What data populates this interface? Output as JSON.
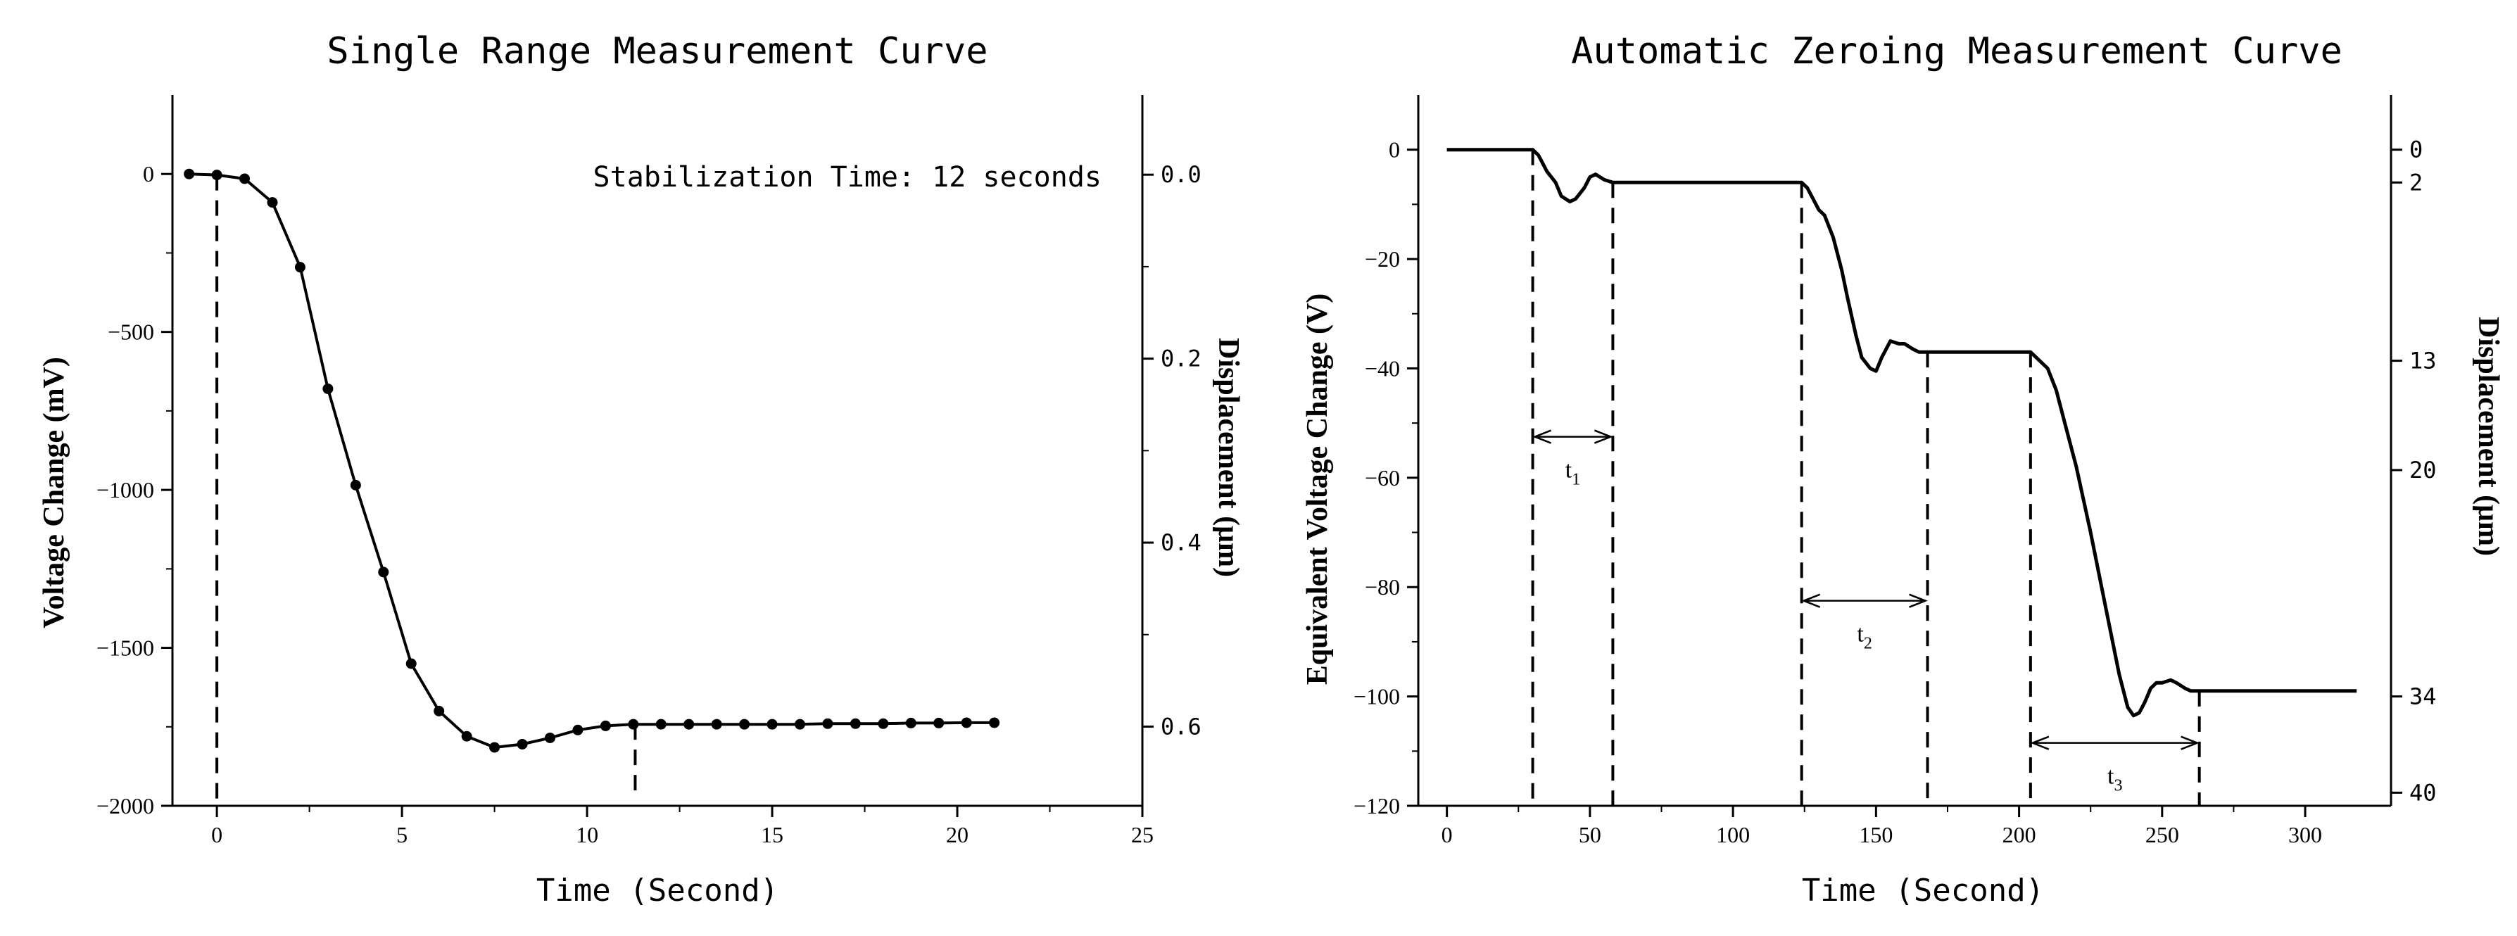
{
  "chart_data": [
    {
      "type": "line",
      "title": "Single Range Measurement Curve",
      "xlabel": "Time  (Second)",
      "ylabel": "Voltage Change (mV)",
      "y2label": "Displacement (μm)",
      "xlim": [
        -1.2,
        25
      ],
      "ylim": [
        -2000,
        250
      ],
      "y2lim": [
        -0.0866,
        0.6861
      ],
      "xticks": [
        0,
        5,
        10,
        15,
        20,
        25
      ],
      "yticks": [
        0,
        -500,
        -1000,
        -1500,
        -2000
      ],
      "y2ticks": [
        "0.0",
        "0.2",
        "0.4",
        "0.6"
      ],
      "grid": false,
      "markers": true,
      "annotation": "Stabilization Time: 12 seconds",
      "dashed_markers_x": [
        0,
        11.3
      ],
      "series": [
        {
          "x": [
            -0.75,
            0,
            0.75,
            1.5,
            2.25,
            3.0,
            3.75,
            4.5,
            5.25,
            6.0,
            6.75,
            7.5,
            8.25,
            9.0,
            9.75,
            10.5,
            11.25,
            12.0,
            12.75,
            13.5,
            14.25,
            15.0,
            15.75,
            16.5,
            17.25,
            18.0,
            18.75,
            19.5,
            20.25,
            21.0
          ],
          "y": [
            0,
            -3,
            -15,
            -90,
            -295,
            -680,
            -985,
            -1260,
            -1550,
            -1700,
            -1780,
            -1815,
            -1805,
            -1785,
            -1760,
            -1747,
            -1742,
            -1742,
            -1742,
            -1742,
            -1742,
            -1742,
            -1742,
            -1740,
            -1740,
            -1740,
            -1738,
            -1738,
            -1737,
            -1737
          ]
        }
      ]
    },
    {
      "type": "line",
      "title": "Automatic Zeroing Measurement Curve",
      "xlabel": "Time  (Second)",
      "ylabel": "Equivalent Voltage Change (V)",
      "y2label": "Displacement (μm)",
      "xlim": [
        -10,
        330
      ],
      "ylim": [
        -120,
        10
      ],
      "xticks": [
        0,
        50,
        100,
        150,
        200,
        250,
        300
      ],
      "yticks": [
        0,
        -20,
        -40,
        -60,
        -80,
        -100,
        -120
      ],
      "y2ticks": [
        {
          "label": "0",
          "y": 0
        },
        {
          "label": "2",
          "y": -6
        },
        {
          "label": "13",
          "y": -38.6
        },
        {
          "label": "20",
          "y": -58.6
        },
        {
          "label": "34",
          "y": -100
        },
        {
          "label": "40",
          "y": -117.6
        }
      ],
      "grid": false,
      "markers": false,
      "dashed_markers_x": [
        30,
        58,
        124,
        168,
        204,
        263
      ],
      "intervals": [
        {
          "label": "t",
          "sub": "1",
          "x0": 30,
          "x1": 58,
          "y": -52.5
        },
        {
          "label": "t",
          "sub": "2",
          "x0": 124,
          "x1": 168,
          "y": -82.5
        },
        {
          "label": "t",
          "sub": "3",
          "x0": 204,
          "x1": 263,
          "y": -108.5
        }
      ],
      "series": [
        {
          "x": [
            0,
            30,
            32,
            35,
            38,
            40,
            43,
            45,
            48,
            50,
            52,
            55,
            58,
            60,
            123,
            124,
            126,
            128,
            130,
            132,
            135,
            138,
            140,
            143,
            145,
            148,
            150,
            152,
            155,
            158,
            160,
            163,
            165,
            168,
            170,
            203,
            204,
            207,
            210,
            213,
            216,
            220,
            225,
            230,
            235,
            238,
            240,
            242,
            244,
            246,
            248,
            250,
            253,
            255,
            258,
            260,
            263,
            265,
            280,
            300,
            318
          ],
          "y": [
            0,
            0,
            -1,
            -4,
            -6,
            -8.5,
            -9.5,
            -9,
            -7,
            -5,
            -4.5,
            -5.5,
            -6,
            -6,
            -6,
            -6,
            -7,
            -9,
            -11,
            -12,
            -16,
            -22,
            -27,
            -34,
            -38,
            -40,
            -40.5,
            -38,
            -35,
            -35.5,
            -35.5,
            -36.5,
            -37,
            -37,
            -37,
            -37,
            -37,
            -38.5,
            -40,
            -44,
            -50,
            -58,
            -70,
            -83,
            -96,
            -102,
            -103.5,
            -103,
            -101,
            -98.5,
            -97.5,
            -97.5,
            -97,
            -97.5,
            -98.5,
            -99,
            -99,
            -99,
            -99,
            -99,
            -99
          ]
        }
      ]
    }
  ]
}
